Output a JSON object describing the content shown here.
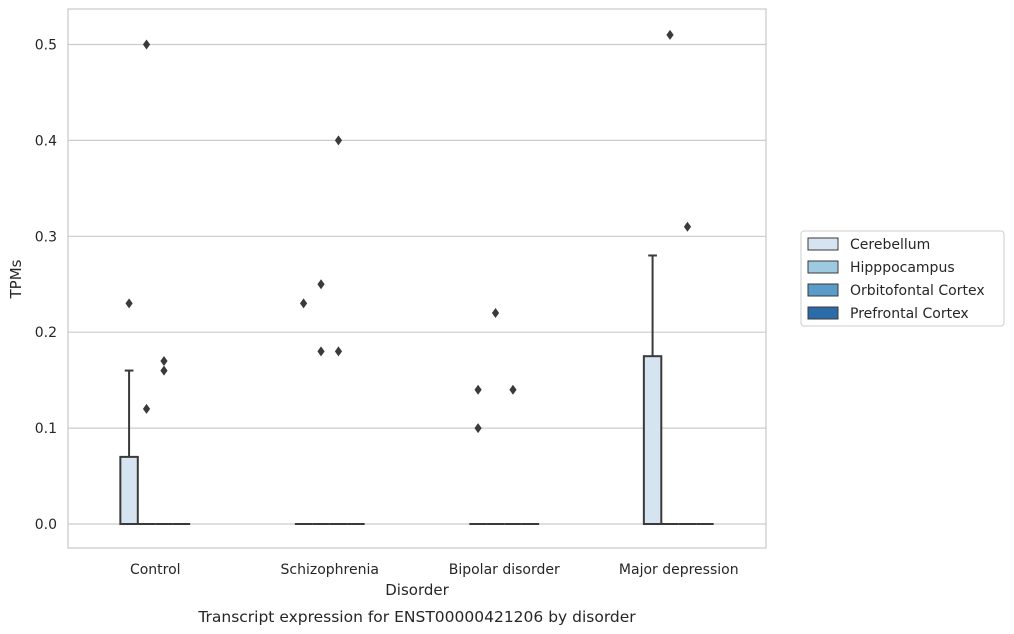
{
  "chart_data": {
    "type": "box",
    "title": "Transcript expression for ENST00000421206 by disorder",
    "xlabel": "Disorder",
    "ylabel": "TPMs",
    "ylim": [
      -0.025,
      0.537
    ],
    "yticks": [
      0.0,
      0.1,
      0.2,
      0.3,
      0.4,
      0.5
    ],
    "ytick_labels": [
      "0.0",
      "0.1",
      "0.2",
      "0.3",
      "0.4",
      "0.5"
    ],
    "grid": "horizontal",
    "legend_position": "right-center",
    "categories": [
      "Control",
      "Schizophrenia",
      "Bipolar disorder",
      "Major depression"
    ],
    "series": [
      {
        "name": "Cerebellum",
        "color": "#d6e3f1",
        "boxes": [
          {
            "q1": 0.0,
            "median": 0.0,
            "q3": 0.07,
            "whisker_low": 0.0,
            "whisker_high": 0.16,
            "outliers": [
              0.23
            ]
          },
          {
            "q1": 0.0,
            "median": 0.0,
            "q3": 0.0,
            "whisker_low": 0.0,
            "whisker_high": 0.0,
            "outliers": [
              0.23
            ]
          },
          {
            "q1": 0.0,
            "median": 0.0,
            "q3": 0.0,
            "whisker_low": 0.0,
            "whisker_high": 0.0,
            "outliers": [
              0.14,
              0.1
            ]
          },
          {
            "q1": 0.0,
            "median": 0.0,
            "q3": 0.175,
            "whisker_low": 0.0,
            "whisker_high": 0.28,
            "outliers": []
          }
        ]
      },
      {
        "name": "Hipppocampus",
        "color": "#9ecae1",
        "boxes": [
          {
            "q1": 0.0,
            "median": 0.0,
            "q3": 0.0,
            "whisker_low": 0.0,
            "whisker_high": 0.0,
            "outliers": [
              0.5,
              0.12
            ]
          },
          {
            "q1": 0.0,
            "median": 0.0,
            "q3": 0.0,
            "whisker_low": 0.0,
            "whisker_high": 0.0,
            "outliers": [
              0.25,
              0.18
            ]
          },
          {
            "q1": 0.0,
            "median": 0.0,
            "q3": 0.0,
            "whisker_low": 0.0,
            "whisker_high": 0.0,
            "outliers": [
              0.22
            ]
          },
          {
            "q1": 0.0,
            "median": 0.0,
            "q3": 0.0,
            "whisker_low": 0.0,
            "whisker_high": 0.0,
            "outliers": [
              0.51
            ]
          }
        ]
      },
      {
        "name": "Orbitofontal Cortex",
        "color": "#5a9bc8",
        "boxes": [
          {
            "q1": 0.0,
            "median": 0.0,
            "q3": 0.0,
            "whisker_low": 0.0,
            "whisker_high": 0.0,
            "outliers": [
              0.17,
              0.16
            ]
          },
          {
            "q1": 0.0,
            "median": 0.0,
            "q3": 0.0,
            "whisker_low": 0.0,
            "whisker_high": 0.0,
            "outliers": [
              0.4,
              0.18
            ]
          },
          {
            "q1": 0.0,
            "median": 0.0,
            "q3": 0.0,
            "whisker_low": 0.0,
            "whisker_high": 0.0,
            "outliers": [
              0.14
            ]
          },
          {
            "q1": 0.0,
            "median": 0.0,
            "q3": 0.0,
            "whisker_low": 0.0,
            "whisker_high": 0.0,
            "outliers": [
              0.31
            ]
          }
        ]
      },
      {
        "name": "Prefrontal Cortex",
        "color": "#2b6ba8",
        "boxes": [
          {
            "q1": 0.0,
            "median": 0.0,
            "q3": 0.0,
            "whisker_low": 0.0,
            "whisker_high": 0.0,
            "outliers": []
          },
          {
            "q1": 0.0,
            "median": 0.0,
            "q3": 0.0,
            "whisker_low": 0.0,
            "whisker_high": 0.0,
            "outliers": []
          },
          {
            "q1": 0.0,
            "median": 0.0,
            "q3": 0.0,
            "whisker_low": 0.0,
            "whisker_high": 0.0,
            "outliers": []
          },
          {
            "q1": 0.0,
            "median": 0.0,
            "q3": 0.0,
            "whisker_low": 0.0,
            "whisker_high": 0.0,
            "outliers": []
          }
        ]
      }
    ],
    "colors": {
      "frame": "#cccccc",
      "grid": "#cccccc",
      "box_edge": "#3a3a3a",
      "marker": "#3a3a3a"
    }
  }
}
